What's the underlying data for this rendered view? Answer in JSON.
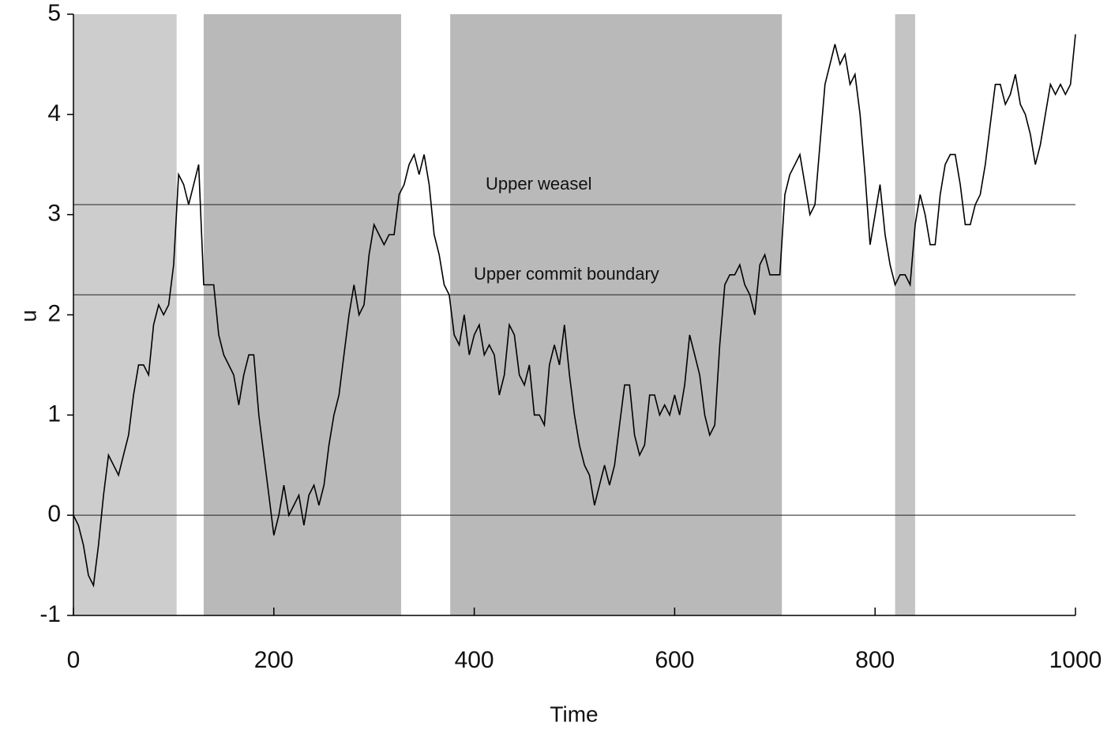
{
  "chart_data": {
    "type": "line",
    "xlabel": "Time",
    "ylabel": "u",
    "xlim": [
      0,
      1000
    ],
    "ylim": [
      -1,
      5
    ],
    "xticks": [
      0,
      200,
      400,
      600,
      800,
      1000
    ],
    "yticks": [
      -1,
      0,
      1,
      2,
      3,
      4,
      5
    ],
    "shaded_regions": [
      {
        "start": 0,
        "end": 103,
        "color": "#cdcdcd"
      },
      {
        "start": 130,
        "end": 327,
        "color": "#b9b9b9"
      },
      {
        "start": 376,
        "end": 707,
        "color": "#b9b9b9"
      },
      {
        "start": 820,
        "end": 840,
        "color": "#c4c4c4"
      }
    ],
    "reference_lines": [
      {
        "value": 0
      },
      {
        "value": 2.2,
        "label": "Upper commit boundary"
      },
      {
        "value": 3.1,
        "label": "Upper weasel"
      }
    ],
    "x": [
      0,
      5,
      10,
      15,
      20,
      25,
      30,
      35,
      40,
      45,
      50,
      55,
      60,
      65,
      70,
      75,
      80,
      85,
      90,
      95,
      100,
      105,
      110,
      115,
      120,
      125,
      130,
      135,
      140,
      145,
      150,
      155,
      160,
      165,
      170,
      175,
      180,
      185,
      190,
      195,
      200,
      205,
      210,
      215,
      220,
      225,
      230,
      235,
      240,
      245,
      250,
      255,
      260,
      265,
      270,
      275,
      280,
      285,
      290,
      295,
      300,
      305,
      310,
      315,
      320,
      325,
      330,
      335,
      340,
      345,
      350,
      355,
      360,
      365,
      370,
      375,
      380,
      385,
      390,
      395,
      400,
      405,
      410,
      415,
      420,
      425,
      430,
      435,
      440,
      445,
      450,
      455,
      460,
      465,
      470,
      475,
      480,
      485,
      490,
      495,
      500,
      505,
      510,
      515,
      520,
      525,
      530,
      535,
      540,
      545,
      550,
      555,
      560,
      565,
      570,
      575,
      580,
      585,
      590,
      595,
      600,
      605,
      610,
      615,
      620,
      625,
      630,
      635,
      640,
      645,
      650,
      655,
      660,
      665,
      670,
      675,
      680,
      685,
      690,
      695,
      700,
      705,
      710,
      715,
      720,
      725,
      730,
      735,
      740,
      745,
      750,
      755,
      760,
      765,
      770,
      775,
      780,
      785,
      790,
      795,
      800,
      805,
      810,
      815,
      820,
      825,
      830,
      835,
      840,
      845,
      850,
      855,
      860,
      865,
      870,
      875,
      880,
      885,
      890,
      895,
      900,
      905,
      910,
      915,
      920,
      925,
      930,
      935,
      940,
      945,
      950,
      955,
      960,
      965,
      970,
      975,
      980,
      985,
      990,
      995,
      1000
    ],
    "series": [
      {
        "name": "u",
        "color": "#000000",
        "values": [
          0.0,
          -0.1,
          -0.3,
          -0.6,
          -0.7,
          -0.3,
          0.2,
          0.6,
          0.5,
          0.4,
          0.6,
          0.8,
          1.2,
          1.5,
          1.5,
          1.4,
          1.9,
          2.1,
          2.0,
          2.1,
          2.5,
          3.4,
          3.3,
          3.1,
          3.3,
          3.5,
          2.3,
          2.3,
          2.3,
          1.8,
          1.6,
          1.5,
          1.4,
          1.1,
          1.4,
          1.6,
          1.6,
          1.0,
          0.6,
          0.2,
          -0.2,
          0.0,
          0.3,
          0.0,
          0.1,
          0.2,
          -0.1,
          0.2,
          0.3,
          0.1,
          0.3,
          0.7,
          1.0,
          1.2,
          1.6,
          2.0,
          2.3,
          2.0,
          2.1,
          2.6,
          2.9,
          2.8,
          2.7,
          2.8,
          2.8,
          3.2,
          3.3,
          3.5,
          3.6,
          3.4,
          3.6,
          3.3,
          2.8,
          2.6,
          2.3,
          2.2,
          1.8,
          1.7,
          2.0,
          1.6,
          1.8,
          1.9,
          1.6,
          1.7,
          1.6,
          1.2,
          1.4,
          1.9,
          1.8,
          1.4,
          1.3,
          1.5,
          1.0,
          1.0,
          0.9,
          1.5,
          1.7,
          1.5,
          1.9,
          1.4,
          1.0,
          0.7,
          0.5,
          0.4,
          0.1,
          0.3,
          0.5,
          0.3,
          0.5,
          0.9,
          1.3,
          1.3,
          0.8,
          0.6,
          0.7,
          1.2,
          1.2,
          1.0,
          1.1,
          1.0,
          1.2,
          1.0,
          1.3,
          1.8,
          1.6,
          1.4,
          1.0,
          0.8,
          0.9,
          1.7,
          2.3,
          2.4,
          2.4,
          2.5,
          2.3,
          2.2,
          2.0,
          2.5,
          2.6,
          2.4,
          2.4,
          2.4,
          3.2,
          3.4,
          3.5,
          3.6,
          3.3,
          3.0,
          3.1,
          3.7,
          4.3,
          4.5,
          4.7,
          4.5,
          4.6,
          4.3,
          4.4,
          4.0,
          3.4,
          2.7,
          3.0,
          3.3,
          2.8,
          2.5,
          2.3,
          2.4,
          2.4,
          2.3,
          2.9,
          3.2,
          3.0,
          2.7,
          2.7,
          3.2,
          3.5,
          3.6,
          3.6,
          3.3,
          2.9,
          2.9,
          3.1,
          3.2,
          3.5,
          3.9,
          4.3,
          4.3,
          4.1,
          4.2,
          4.4,
          4.1,
          4.0,
          3.8,
          3.5,
          3.7,
          4.0,
          4.3,
          4.2,
          4.3,
          4.2,
          4.3,
          4.8
        ]
      }
    ]
  }
}
